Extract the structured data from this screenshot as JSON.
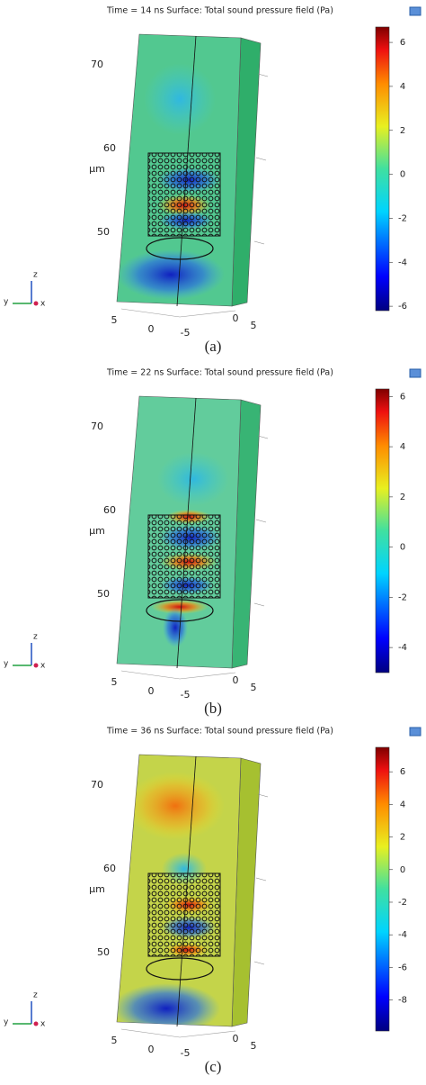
{
  "panels": [
    {
      "title": "Time = 14 ns Surface: Total sound pressure field (Pa)",
      "caption": "(a)",
      "colorbar_lim": [
        -6.2,
        6.7
      ],
      "colorbar_ticks": [
        6,
        4,
        2,
        0,
        -2,
        -4,
        -6
      ],
      "z_ticks": [
        70,
        60,
        50
      ],
      "z_label": "μm",
      "x_ticks": [
        5,
        0,
        -5
      ],
      "y_ticks": [
        0,
        5
      ],
      "triad": [
        "z",
        "y",
        "x"
      ]
    },
    {
      "title": "Time = 22 ns Surface: Total sound pressure field (Pa)",
      "caption": "(b)",
      "colorbar_lim": [
        -5.0,
        6.3
      ],
      "colorbar_ticks": [
        6,
        4,
        2,
        0,
        -2,
        -4
      ],
      "z_ticks": [
        70,
        60,
        50
      ],
      "z_label": "μm",
      "x_ticks": [
        5,
        0,
        -5
      ],
      "y_ticks": [
        0,
        5
      ],
      "triad": [
        "z",
        "y",
        "x"
      ]
    },
    {
      "title": "Time = 36 ns Surface: Total sound pressure field (Pa)",
      "caption": "(c)",
      "colorbar_lim": [
        -9.9,
        7.5
      ],
      "colorbar_ticks": [
        6,
        4,
        2,
        0,
        -2,
        -4,
        -6,
        -8
      ],
      "z_ticks": [
        70,
        60,
        50
      ],
      "z_label": "μm",
      "x_ticks": [
        5,
        0,
        -5
      ],
      "y_ticks": [
        0,
        5
      ],
      "triad": [
        "z",
        "y",
        "x"
      ]
    }
  ]
}
